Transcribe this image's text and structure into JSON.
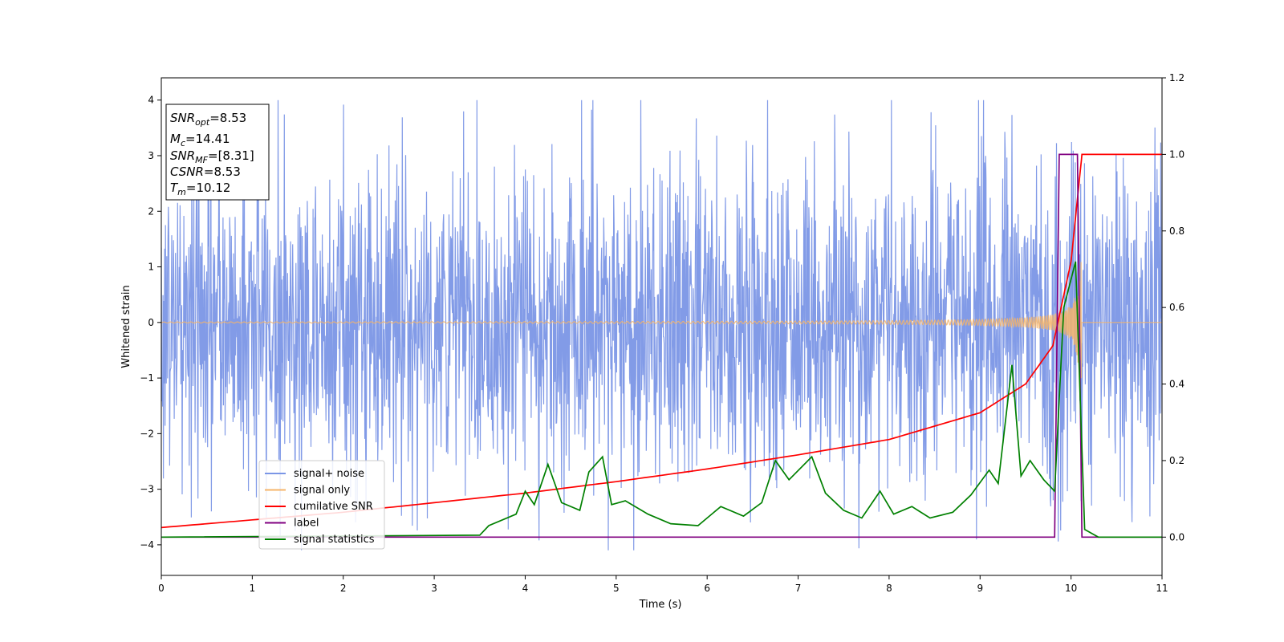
{
  "chart_data": {
    "type": "line",
    "xlabel": "Time (s)",
    "ylabel": "Whitened strain",
    "xlim": [
      0,
      11
    ],
    "ylim": [
      -4.55,
      4.4
    ],
    "y2lim": [
      -0.1,
      1.2
    ],
    "x_ticks": [
      "0",
      "1",
      "2",
      "3",
      "4",
      "5",
      "6",
      "7",
      "8",
      "9",
      "10",
      "11"
    ],
    "y_ticks": [
      "4",
      "3",
      "2",
      "1",
      "0",
      "−1",
      "−2",
      "−3",
      "−4"
    ],
    "y2_ticks": [
      "1.2",
      "1.0",
      "0.8",
      "0.6",
      "0.4",
      "0.2",
      "0.0"
    ],
    "grid": false,
    "legend_position": "lower-left",
    "annotation": [
      {
        "base": "SNR",
        "sub": "opt",
        "value": "=8.53"
      },
      {
        "base": "M",
        "sub": "c",
        "value": "=14.41"
      },
      {
        "base": "SNR",
        "sub": "MF",
        "value": "=[8.31]"
      },
      {
        "base": "CSNR",
        "sub": "",
        "value": "=8.53"
      },
      {
        "base": "T",
        "sub": "m",
        "value": "=10.12"
      }
    ],
    "series": [
      {
        "name": "signal+ noise",
        "color": "#7b96e6",
        "axis": "left",
        "style": "noise, amplitude ~1.4 sd, peaks 4.0 / -4.1"
      },
      {
        "name": "signal only",
        "color": "#f5b46a",
        "axis": "left",
        "style": "chirp merging at t=10.12"
      },
      {
        "name": "cumilative SNR",
        "color": "#ff0000",
        "axis": "right",
        "x": [
          0,
          1,
          2,
          3,
          4,
          5,
          6,
          7,
          8,
          9,
          9.5,
          9.8,
          10.0,
          10.12,
          11
        ],
        "y": [
          0.025,
          0.045,
          0.065,
          0.09,
          0.115,
          0.145,
          0.178,
          0.215,
          0.255,
          0.325,
          0.4,
          0.5,
          0.72,
          1.0,
          1.0
        ]
      },
      {
        "name": "label",
        "color": "#800080",
        "axis": "right",
        "x": [
          0,
          9.82,
          9.87,
          10.07,
          10.12,
          11
        ],
        "y": [
          0,
          0,
          1,
          1,
          0,
          0
        ]
      },
      {
        "name": "signal statistics",
        "color": "#008000",
        "axis": "right",
        "x": [
          0,
          3.5,
          3.6,
          3.9,
          4.0,
          4.1,
          4.25,
          4.4,
          4.6,
          4.7,
          4.85,
          4.95,
          5.1,
          5.35,
          5.6,
          5.9,
          6.15,
          6.4,
          6.6,
          6.75,
          6.9,
          7.15,
          7.3,
          7.5,
          7.7,
          7.9,
          8.05,
          8.25,
          8.45,
          8.7,
          8.9,
          9.1,
          9.2,
          9.35,
          9.45,
          9.55,
          9.7,
          9.82,
          9.92,
          10.05,
          10.15,
          10.3,
          11
        ],
        "y": [
          0.0,
          0.005,
          0.03,
          0.06,
          0.12,
          0.085,
          0.19,
          0.09,
          0.07,
          0.17,
          0.21,
          0.085,
          0.095,
          0.06,
          0.035,
          0.03,
          0.08,
          0.055,
          0.09,
          0.2,
          0.15,
          0.21,
          0.115,
          0.07,
          0.05,
          0.12,
          0.06,
          0.08,
          0.05,
          0.065,
          0.11,
          0.175,
          0.14,
          0.45,
          0.16,
          0.2,
          0.15,
          0.12,
          0.6,
          0.72,
          0.02,
          0.0,
          0.0
        ]
      }
    ]
  }
}
